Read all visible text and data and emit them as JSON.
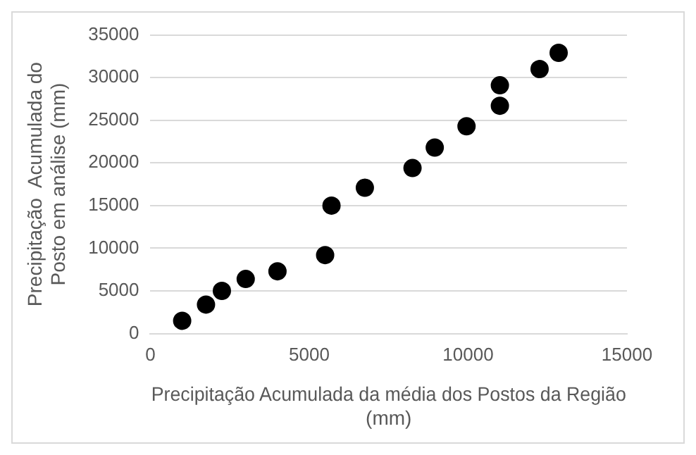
{
  "chart_data": {
    "type": "scatter",
    "xlabel": "Precipitação Acumulada da média dos Postos da Região (mm)",
    "ylabel": "Precipitação  Acumulada do Posto em análise (mm)",
    "x": [
      1000,
      1750,
      2250,
      3000,
      4000,
      5500,
      5700,
      6750,
      8250,
      8950,
      9950,
      11000,
      11000,
      12250,
      12850
    ],
    "series": [
      {
        "color": "#000000",
        "values": [
          1500,
          3400,
          5000,
          6400,
          7300,
          9200,
          15000,
          17100,
          19400,
          21800,
          24300,
          26700,
          29100,
          31000,
          32900
        ]
      }
    ],
    "xlim": [
      0,
      15000
    ],
    "xticks": [
      0,
      5000,
      10000,
      15000
    ],
    "ylim": [
      0,
      35000
    ],
    "yticks": [
      0,
      5000,
      10000,
      15000,
      20000,
      25000,
      30000,
      35000
    ],
    "grid": "y",
    "legend": false,
    "marker": "circle"
  }
}
